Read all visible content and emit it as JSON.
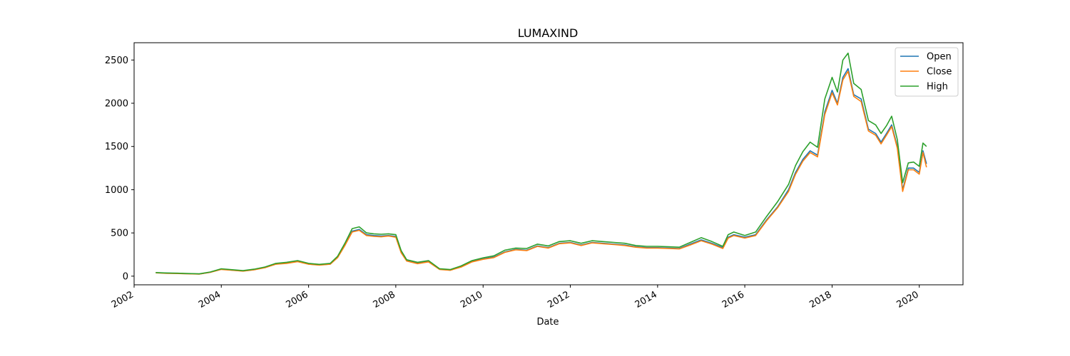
{
  "chart_data": {
    "type": "line",
    "title": "LUMAXIND",
    "xlabel": "Date",
    "ylabel": "",
    "xlim": [
      "2002-01-01",
      "2021-01-01"
    ],
    "ylim": [
      -100,
      2700
    ],
    "grid": false,
    "legend_position": "top-right",
    "x_ticks": [
      "2002",
      "2004",
      "2006",
      "2008",
      "2010",
      "2012",
      "2014",
      "2016",
      "2018",
      "2020"
    ],
    "y_ticks": [
      0,
      500,
      1000,
      1500,
      2000,
      2500
    ],
    "dates": [
      "2002-07-01",
      "2002-10-01",
      "2003-01-01",
      "2003-04-01",
      "2003-07-01",
      "2003-10-01",
      "2004-01-01",
      "2004-04-01",
      "2004-07-01",
      "2004-10-01",
      "2005-01-01",
      "2005-04-01",
      "2005-07-01",
      "2005-10-01",
      "2006-01-01",
      "2006-04-01",
      "2006-07-01",
      "2006-09-01",
      "2006-11-01",
      "2007-01-01",
      "2007-03-01",
      "2007-05-01",
      "2007-07-01",
      "2007-09-01",
      "2007-11-01",
      "2008-01-01",
      "2008-02-15",
      "2008-04-01",
      "2008-07-01",
      "2008-10-01",
      "2009-01-01",
      "2009-04-01",
      "2009-07-01",
      "2009-10-01",
      "2010-01-01",
      "2010-04-01",
      "2010-07-01",
      "2010-10-01",
      "2011-01-01",
      "2011-04-01",
      "2011-07-01",
      "2011-10-01",
      "2012-01-01",
      "2012-04-01",
      "2012-07-01",
      "2012-10-01",
      "2013-01-01",
      "2013-04-01",
      "2013-07-01",
      "2013-10-01",
      "2014-01-01",
      "2014-04-01",
      "2014-07-01",
      "2014-10-01",
      "2015-01-01",
      "2015-04-01",
      "2015-07-01",
      "2015-08-15",
      "2015-10-01",
      "2016-01-01",
      "2016-04-01",
      "2016-07-01",
      "2016-10-01",
      "2017-01-01",
      "2017-03-01",
      "2017-05-01",
      "2017-07-01",
      "2017-09-01",
      "2017-11-01",
      "2018-01-01",
      "2018-02-15",
      "2018-04-01",
      "2018-05-15",
      "2018-07-01",
      "2018-09-01",
      "2018-11-01",
      "2019-01-01",
      "2019-02-15",
      "2019-04-01",
      "2019-05-15",
      "2019-07-01",
      "2019-08-15",
      "2019-10-01",
      "2019-11-15",
      "2020-01-01",
      "2020-02-01",
      "2020-03-01"
    ],
    "series": [
      {
        "name": "Open",
        "color": "#1f77b4",
        "values": [
          40,
          35,
          32,
          28,
          25,
          45,
          80,
          70,
          60,
          75,
          100,
          140,
          150,
          170,
          140,
          130,
          140,
          220,
          360,
          520,
          540,
          480,
          470,
          465,
          470,
          460,
          280,
          180,
          150,
          170,
          80,
          70,
          110,
          170,
          200,
          220,
          280,
          310,
          300,
          350,
          330,
          380,
          390,
          360,
          390,
          380,
          370,
          360,
          340,
          330,
          330,
          325,
          320,
          370,
          420,
          380,
          330,
          450,
          480,
          450,
          480,
          650,
          800,
          1000,
          1200,
          1350,
          1450,
          1400,
          1900,
          2150,
          2000,
          2300,
          2400,
          2100,
          2050,
          1700,
          1650,
          1550,
          1650,
          1750,
          1500,
          1000,
          1250,
          1250,
          1200,
          1450,
          1300
        ]
      },
      {
        "name": "Close",
        "color": "#ff7f0e",
        "values": [
          38,
          33,
          30,
          27,
          24,
          44,
          78,
          68,
          58,
          73,
          98,
          138,
          148,
          168,
          138,
          128,
          138,
          215,
          355,
          510,
          530,
          470,
          460,
          455,
          465,
          450,
          270,
          175,
          145,
          165,
          78,
          68,
          105,
          165,
          195,
          215,
          275,
          305,
          295,
          345,
          325,
          375,
          385,
          355,
          385,
          375,
          365,
          355,
          335,
          325,
          325,
          320,
          315,
          360,
          410,
          370,
          320,
          440,
          470,
          440,
          470,
          640,
          790,
          980,
          1180,
          1330,
          1430,
          1380,
          1870,
          2120,
          1980,
          2270,
          2370,
          2080,
          2020,
          1680,
          1630,
          1530,
          1630,
          1730,
          1480,
          980,
          1230,
          1230,
          1180,
          1430,
          1260
        ]
      },
      {
        "name": "High",
        "color": "#2ca02c",
        "values": [
          42,
          37,
          34,
          30,
          27,
          48,
          85,
          75,
          64,
          80,
          106,
          148,
          160,
          180,
          148,
          136,
          148,
          230,
          380,
          550,
          570,
          500,
          490,
          485,
          490,
          480,
          295,
          190,
          160,
          180,
          86,
          76,
          118,
          180,
          212,
          235,
          300,
          325,
          320,
          370,
          350,
          400,
          410,
          380,
          410,
          400,
          390,
          380,
          355,
          345,
          345,
          340,
          335,
          390,
          445,
          400,
          345,
          480,
          510,
          470,
          510,
          690,
          860,
          1060,
          1280,
          1440,
          1550,
          1490,
          2050,
          2300,
          2130,
          2500,
          2580,
          2230,
          2160,
          1800,
          1750,
          1650,
          1740,
          1850,
          1580,
          1080,
          1310,
          1320,
          1270,
          1540,
          1500
        ]
      }
    ]
  }
}
